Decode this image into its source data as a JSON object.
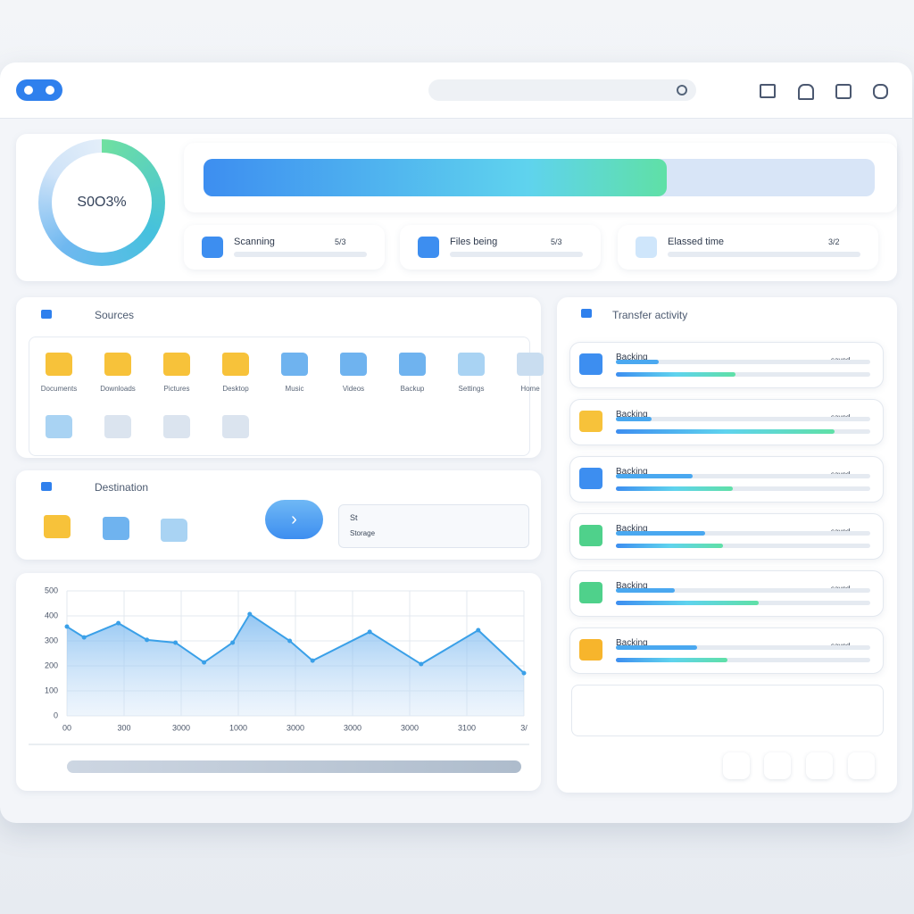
{
  "overview": {
    "donut_label": "S0O3%",
    "progress": 69,
    "cards": [
      {
        "label": "Scanning",
        "badge": "5/3"
      },
      {
        "label": "Files being",
        "badge": "5/3"
      },
      {
        "label": "Elassed time",
        "badge": "3/2"
      }
    ]
  },
  "sources": {
    "title": "Sources",
    "folders": [
      {
        "label": "Documents",
        "color": "#f7c23a"
      },
      {
        "label": "Downloads",
        "color": "#f7c23a"
      },
      {
        "label": "Pictures",
        "color": "#f7c23a"
      },
      {
        "label": "Desktop",
        "color": "#f7c23a"
      },
      {
        "label": "Music",
        "color": "#6fb3ef"
      },
      {
        "label": "Videos",
        "color": "#6fb3ef"
      },
      {
        "label": "Backup",
        "color": "#6fb3ef"
      },
      {
        "label": "Settings",
        "color": "#a9d3f3"
      },
      {
        "label": "Home",
        "color": "#c9ddf0"
      }
    ]
  },
  "destination": {
    "title": "Destination",
    "target_label": "St",
    "target_name": "Storage"
  },
  "chart_data": {
    "type": "line",
    "x": [
      0,
      0.3,
      0.9,
      1.4,
      1.9,
      2.4,
      2.9,
      3.2,
      3.9,
      4.3,
      5.3,
      6.2,
      7.2,
      8
    ],
    "values": [
      357,
      314,
      371,
      304,
      293,
      214,
      293,
      407,
      300,
      221,
      336,
      207,
      343,
      171
    ],
    "color": "#3aa0e8",
    "xlim": [
      0,
      8
    ],
    "xticks": [
      {
        "value": 0,
        "label": "00"
      },
      {
        "value": 1,
        "label": "300"
      },
      {
        "value": 2,
        "label": "3000"
      },
      {
        "value": 3,
        "label": "1000"
      },
      {
        "value": 4,
        "label": "3000"
      },
      {
        "value": 5,
        "label": "3000"
      },
      {
        "value": 6,
        "label": "3000"
      },
      {
        "value": 7,
        "label": "3100"
      },
      {
        "value": 8,
        "label": "3/"
      }
    ],
    "ylim": [
      0,
      500
    ],
    "yticks": [
      0,
      100,
      200,
      300,
      400,
      500
    ],
    "grid": true
  },
  "activity": {
    "title": "Transfer activity",
    "rows": [
      {
        "name": "Backing",
        "status": "saved",
        "color": "#3d8ef0",
        "progress": [
          17,
          47
        ]
      },
      {
        "name": "Backing",
        "status": "saved",
        "color": "#f7c23a",
        "progress": [
          14,
          86
        ]
      },
      {
        "name": "Backing",
        "status": "saved",
        "color": "#3d8ef0",
        "progress": [
          30,
          46
        ]
      },
      {
        "name": "Backing",
        "status": "saved",
        "color": "#4fd18b",
        "progress": [
          35,
          42
        ]
      },
      {
        "name": "Backing",
        "status": "saved",
        "color": "#4fd18b",
        "progress": [
          23,
          56
        ]
      },
      {
        "name": "Backing",
        "status": "saved",
        "color": "#f7b52c",
        "progress": [
          32,
          44
        ]
      }
    ]
  }
}
